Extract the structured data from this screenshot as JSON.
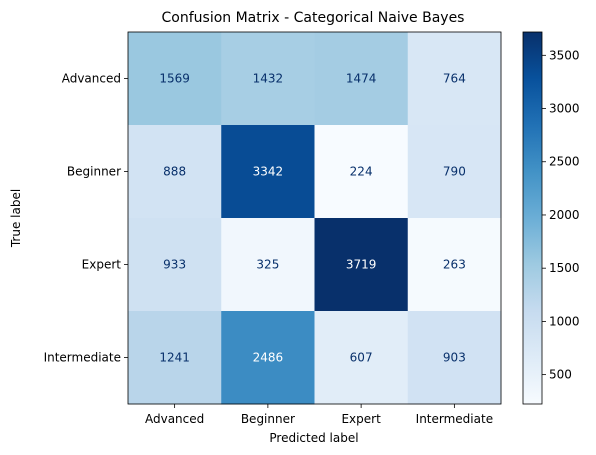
{
  "chart_data": {
    "type": "heatmap",
    "title": "Confusion Matrix - Categorical Naive Bayes",
    "xlabel": "Predicted label",
    "ylabel": "True label",
    "x_categories": [
      "Advanced",
      "Beginner",
      "Expert",
      "Intermediate"
    ],
    "y_categories": [
      "Advanced",
      "Beginner",
      "Expert",
      "Intermediate"
    ],
    "values": [
      [
        1569,
        1432,
        1474,
        764
      ],
      [
        888,
        3342,
        224,
        790
      ],
      [
        933,
        325,
        3719,
        263
      ],
      [
        1241,
        2486,
        607,
        903
      ]
    ],
    "colormap": "Blues",
    "color_range": [
      224,
      3719
    ],
    "colorbar_ticks": [
      500,
      1000,
      1500,
      2000,
      2500,
      3000,
      3500
    ],
    "grid": false
  }
}
